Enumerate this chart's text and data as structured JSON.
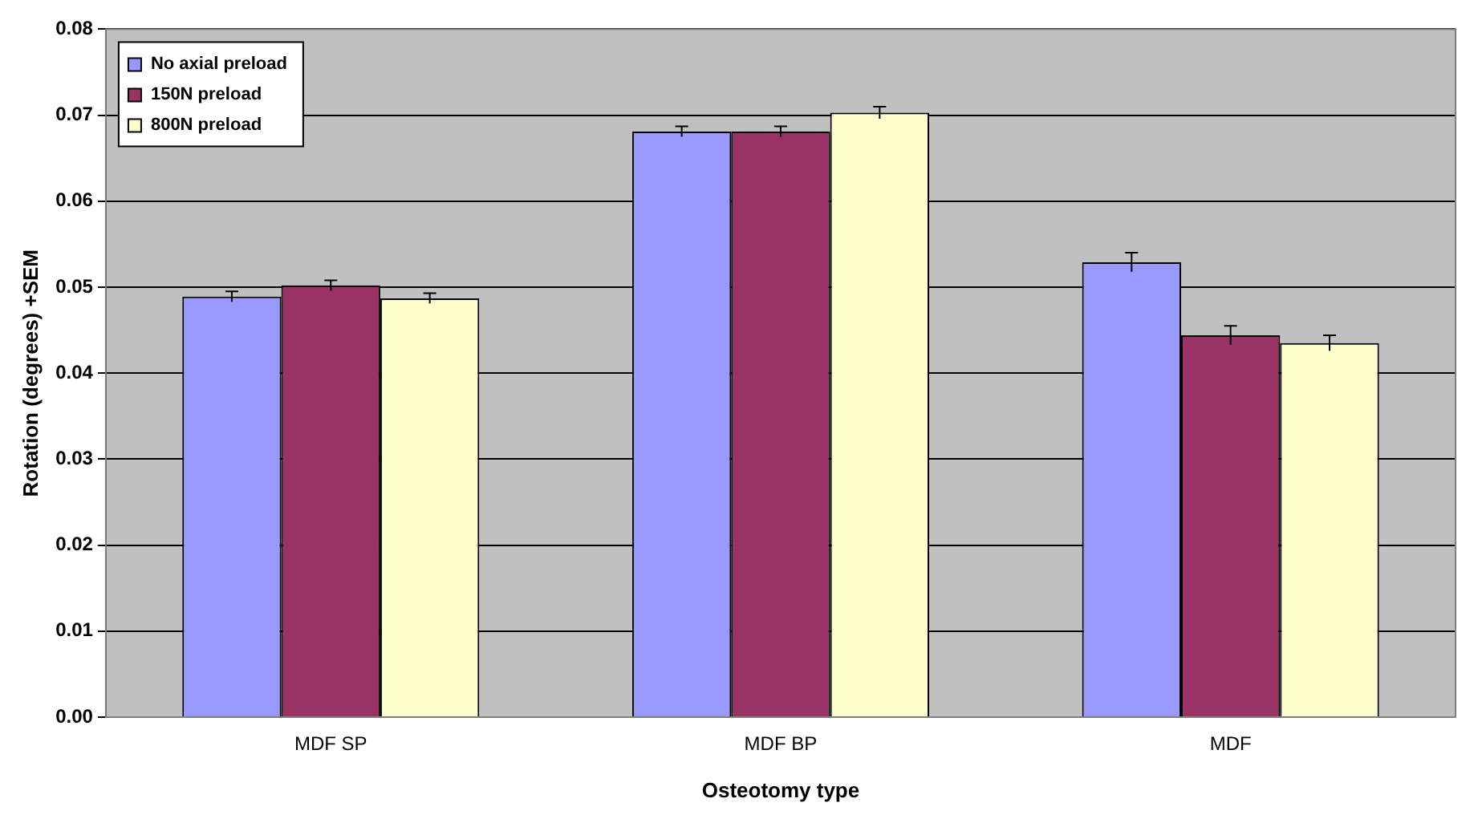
{
  "chart_data": {
    "type": "bar",
    "xlabel": "Osteotomy type",
    "ylabel": "Rotation (degrees) +SEM",
    "categories": [
      "MDF SP",
      "MDF BP",
      "MDF"
    ],
    "series": [
      {
        "name": "No axial preload",
        "color": "#9999ff",
        "values": [
          0.0489,
          0.0681,
          0.0529
        ],
        "errors": [
          0.0006,
          0.0006,
          0.0011
        ]
      },
      {
        "name": "150N preload",
        "color": "#993366",
        "values": [
          0.0502,
          0.0681,
          0.0444
        ],
        "errors": [
          0.0006,
          0.0006,
          0.0011
        ]
      },
      {
        "name": "800N preload",
        "color": "#ffffcc",
        "values": [
          0.0487,
          0.0703,
          0.0435
        ],
        "errors": [
          0.0006,
          0.0007,
          0.0009
        ]
      }
    ],
    "ylim": [
      0,
      0.08
    ],
    "yticks": [
      {
        "value": 0,
        "label": "0.00"
      },
      {
        "value": 0.01,
        "label": "0.01"
      },
      {
        "value": 0.02,
        "label": "0.02"
      },
      {
        "value": 0.03,
        "label": "0.03"
      },
      {
        "value": 0.04,
        "label": "0.04"
      },
      {
        "value": 0.05,
        "label": "0.05"
      },
      {
        "value": 0.06,
        "label": "0.06"
      },
      {
        "value": 0.07,
        "label": "0.07"
      },
      {
        "value": 0.08,
        "label": "0.08"
      }
    ],
    "grid": "y",
    "legend": "top left"
  }
}
